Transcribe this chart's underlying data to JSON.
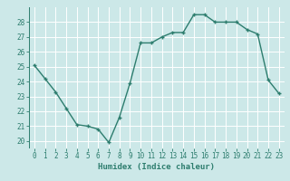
{
  "x": [
    0,
    1,
    2,
    3,
    4,
    5,
    6,
    7,
    8,
    9,
    10,
    11,
    12,
    13,
    14,
    15,
    16,
    17,
    18,
    19,
    20,
    21,
    22,
    23
  ],
  "y": [
    25.1,
    24.2,
    23.3,
    22.2,
    21.1,
    21.0,
    20.8,
    19.9,
    21.6,
    23.9,
    26.6,
    26.6,
    27.0,
    27.3,
    27.3,
    28.5,
    28.5,
    28.0,
    28.0,
    28.0,
    27.5,
    27.2,
    24.1,
    23.2
  ],
  "xlabel": "Humidex (Indice chaleur)",
  "ylim": [
    19.5,
    29.0
  ],
  "xlim": [
    -0.5,
    23.5
  ],
  "line_color": "#2d7d6e",
  "marker": "+",
  "bg_color": "#cce8e8",
  "grid_color": "#ffffff",
  "tick_color": "#2d7d6e",
  "label_color": "#2d7d6e",
  "yticks": [
    20,
    21,
    22,
    23,
    24,
    25,
    26,
    27,
    28
  ],
  "xticks": [
    0,
    1,
    2,
    3,
    4,
    5,
    6,
    7,
    8,
    9,
    10,
    11,
    12,
    13,
    14,
    15,
    16,
    17,
    18,
    19,
    20,
    21,
    22,
    23
  ],
  "linewidth": 1.0,
  "markersize": 3.5,
  "tick_fontsize": 5.5,
  "xlabel_fontsize": 6.5
}
